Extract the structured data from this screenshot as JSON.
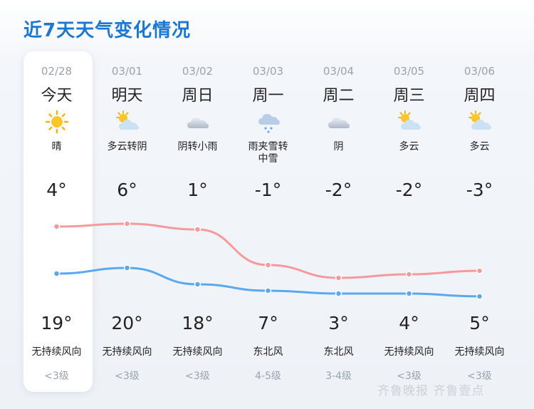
{
  "title": "近7天天气变化情况",
  "colors": {
    "title": "#1a78d2",
    "high_line": "#f59a9a",
    "low_line": "#5aa9f0"
  },
  "days": [
    {
      "date": "02/28",
      "weekday": "今天",
      "icon": "sun-icon",
      "cond": "晴",
      "hi": "4°",
      "lo": "19°",
      "wind": "无持续风向",
      "level": "<3级"
    },
    {
      "date": "03/01",
      "weekday": "明天",
      "icon": "partly-cloudy-icon",
      "cond": "多云转阴",
      "hi": "6°",
      "lo": "20°",
      "wind": "无持续风向",
      "level": "<3级"
    },
    {
      "date": "03/02",
      "weekday": "周日",
      "icon": "cloud-icon",
      "cond": "阴转小雨",
      "hi": "1°",
      "lo": "18°",
      "wind": "无持续风向",
      "level": "<3级"
    },
    {
      "date": "03/03",
      "weekday": "周一",
      "icon": "sleet-icon",
      "cond": "雨夹雪转中雪",
      "hi": "-1°",
      "lo": "7°",
      "wind": "东北风",
      "level": "4-5级"
    },
    {
      "date": "03/04",
      "weekday": "周二",
      "icon": "cloud-icon",
      "cond": "阴",
      "hi": "-2°",
      "lo": "3°",
      "wind": "东北风",
      "level": "3-4级"
    },
    {
      "date": "03/05",
      "weekday": "周三",
      "icon": "partly-cloudy-icon",
      "cond": "多云",
      "hi": "-2°",
      "lo": "4°",
      "wind": "无持续风向",
      "level": "<3级"
    },
    {
      "date": "03/06",
      "weekday": "周四",
      "icon": "partly-cloudy-icon",
      "cond": "多云",
      "hi": "-3°",
      "lo": "5°",
      "wind": "无持续风向",
      "level": "<3级"
    }
  ],
  "watermark": "齐鲁晚报  齐鲁壹点"
}
